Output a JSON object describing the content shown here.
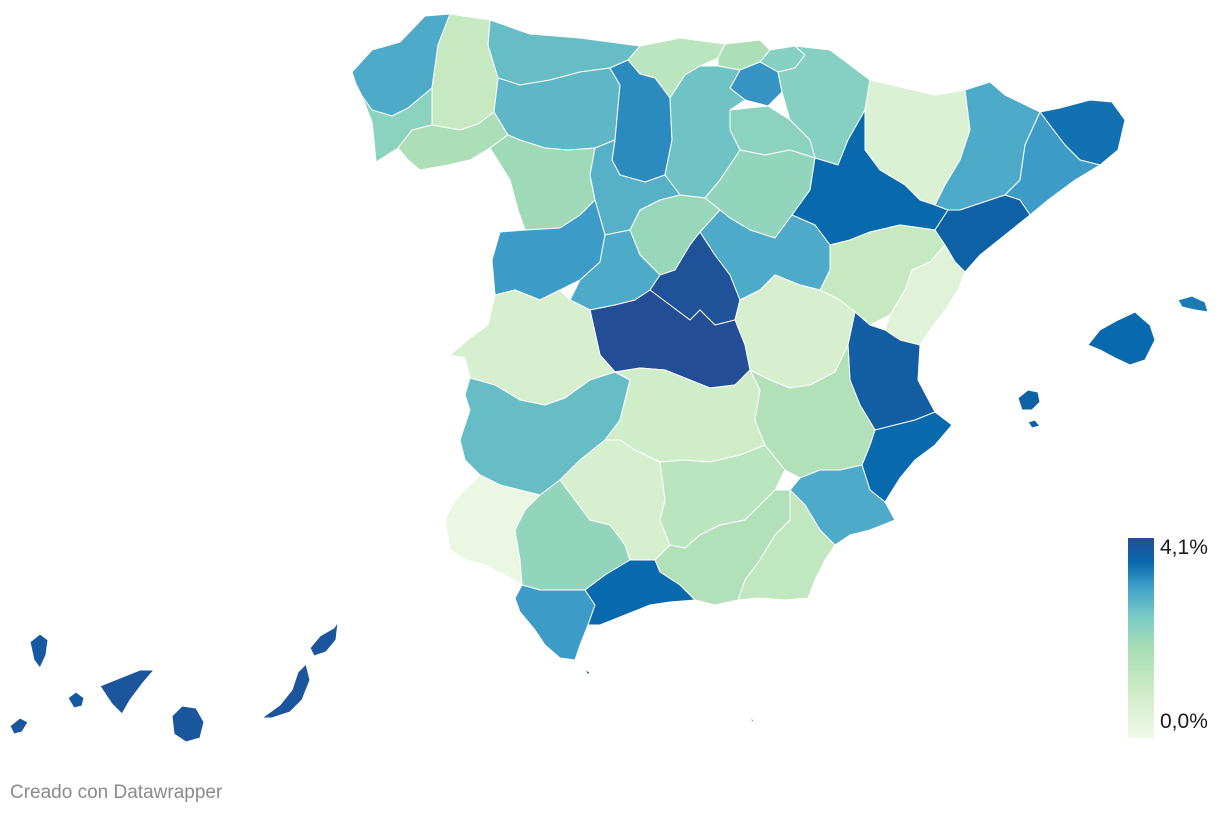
{
  "map": {
    "scale": {
      "min_label": "0,0%",
      "max_label": "4,1%",
      "min_value": 0.0,
      "max_value": 4.1,
      "colors": [
        "#f0f9e8",
        "#ccebc5",
        "#a8ddb5",
        "#7bccc4",
        "#43a2ca",
        "#0868ac",
        "#234e96"
      ]
    },
    "regions": [
      {
        "name": "A Coruña",
        "value": 2.6
      },
      {
        "name": "Lugo",
        "value": 0.8
      },
      {
        "name": "Pontevedra",
        "value": 1.8
      },
      {
        "name": "Ourense",
        "value": 1.3
      },
      {
        "name": "Asturias",
        "value": 2.3
      },
      {
        "name": "Cantabria",
        "value": 1.0
      },
      {
        "name": "Bizkaia",
        "value": 1.3
      },
      {
        "name": "Gipuzkoa",
        "value": 1.9
      },
      {
        "name": "Araba",
        "value": 2.9
      },
      {
        "name": "Navarra",
        "value": 1.9
      },
      {
        "name": "La Rioja",
        "value": 1.8
      },
      {
        "name": "León",
        "value": 2.4
      },
      {
        "name": "Palencia",
        "value": 3.0
      },
      {
        "name": "Burgos",
        "value": 2.2
      },
      {
        "name": "Zamora",
        "value": 1.5
      },
      {
        "name": "Valladolid",
        "value": 2.5
      },
      {
        "name": "Soria",
        "value": 1.7
      },
      {
        "name": "Salamanca",
        "value": 2.8
      },
      {
        "name": "Segovia",
        "value": 1.6
      },
      {
        "name": "Ávila",
        "value": 2.6
      },
      {
        "name": "Huesca",
        "value": 0.4
      },
      {
        "name": "Zaragoza",
        "value": 3.4
      },
      {
        "name": "Teruel",
        "value": 0.8
      },
      {
        "name": "Lleida",
        "value": 2.6
      },
      {
        "name": "Girona",
        "value": 3.3
      },
      {
        "name": "Barcelona",
        "value": 2.8
      },
      {
        "name": "Tarragona",
        "value": 3.6
      },
      {
        "name": "Madrid",
        "value": 4.0
      },
      {
        "name": "Guadalajara",
        "value": 2.6
      },
      {
        "name": "Cuenca",
        "value": 0.5
      },
      {
        "name": "Toledo",
        "value": 4.1
      },
      {
        "name": "Castellón",
        "value": 0.3
      },
      {
        "name": "Valencia",
        "value": 3.7
      },
      {
        "name": "Alicante",
        "value": 3.4
      },
      {
        "name": "Cáceres",
        "value": 0.5
      },
      {
        "name": "Badajoz",
        "value": 2.3
      },
      {
        "name": "Ciudad Real",
        "value": 0.6
      },
      {
        "name": "Albacete",
        "value": 1.2
      },
      {
        "name": "Murcia",
        "value": 2.6
      },
      {
        "name": "Huelva",
        "value": 0.1
      },
      {
        "name": "Sevilla",
        "value": 1.7
      },
      {
        "name": "Córdoba",
        "value": 0.5
      },
      {
        "name": "Jaén",
        "value": 1.0
      },
      {
        "name": "Granada",
        "value": 1.2
      },
      {
        "name": "Almería",
        "value": 0.9
      },
      {
        "name": "Cádiz",
        "value": 2.8
      },
      {
        "name": "Málaga",
        "value": 3.4
      },
      {
        "name": "Mallorca",
        "value": 3.4
      },
      {
        "name": "Menorca",
        "value": 3.2
      },
      {
        "name": "Ibiza",
        "value": 3.6
      },
      {
        "name": "La Palma",
        "value": 3.8
      },
      {
        "name": "La Gomera",
        "value": 3.8
      },
      {
        "name": "Tenerife",
        "value": 3.9
      },
      {
        "name": "Gran Canaria",
        "value": 3.9
      },
      {
        "name": "Fuerteventura",
        "value": 3.9
      },
      {
        "name": "Lanzarote",
        "value": 3.9
      },
      {
        "name": "El Hierro",
        "value": 3.9
      }
    ]
  },
  "footer": {
    "credit": "Creado con Datawrapper"
  }
}
